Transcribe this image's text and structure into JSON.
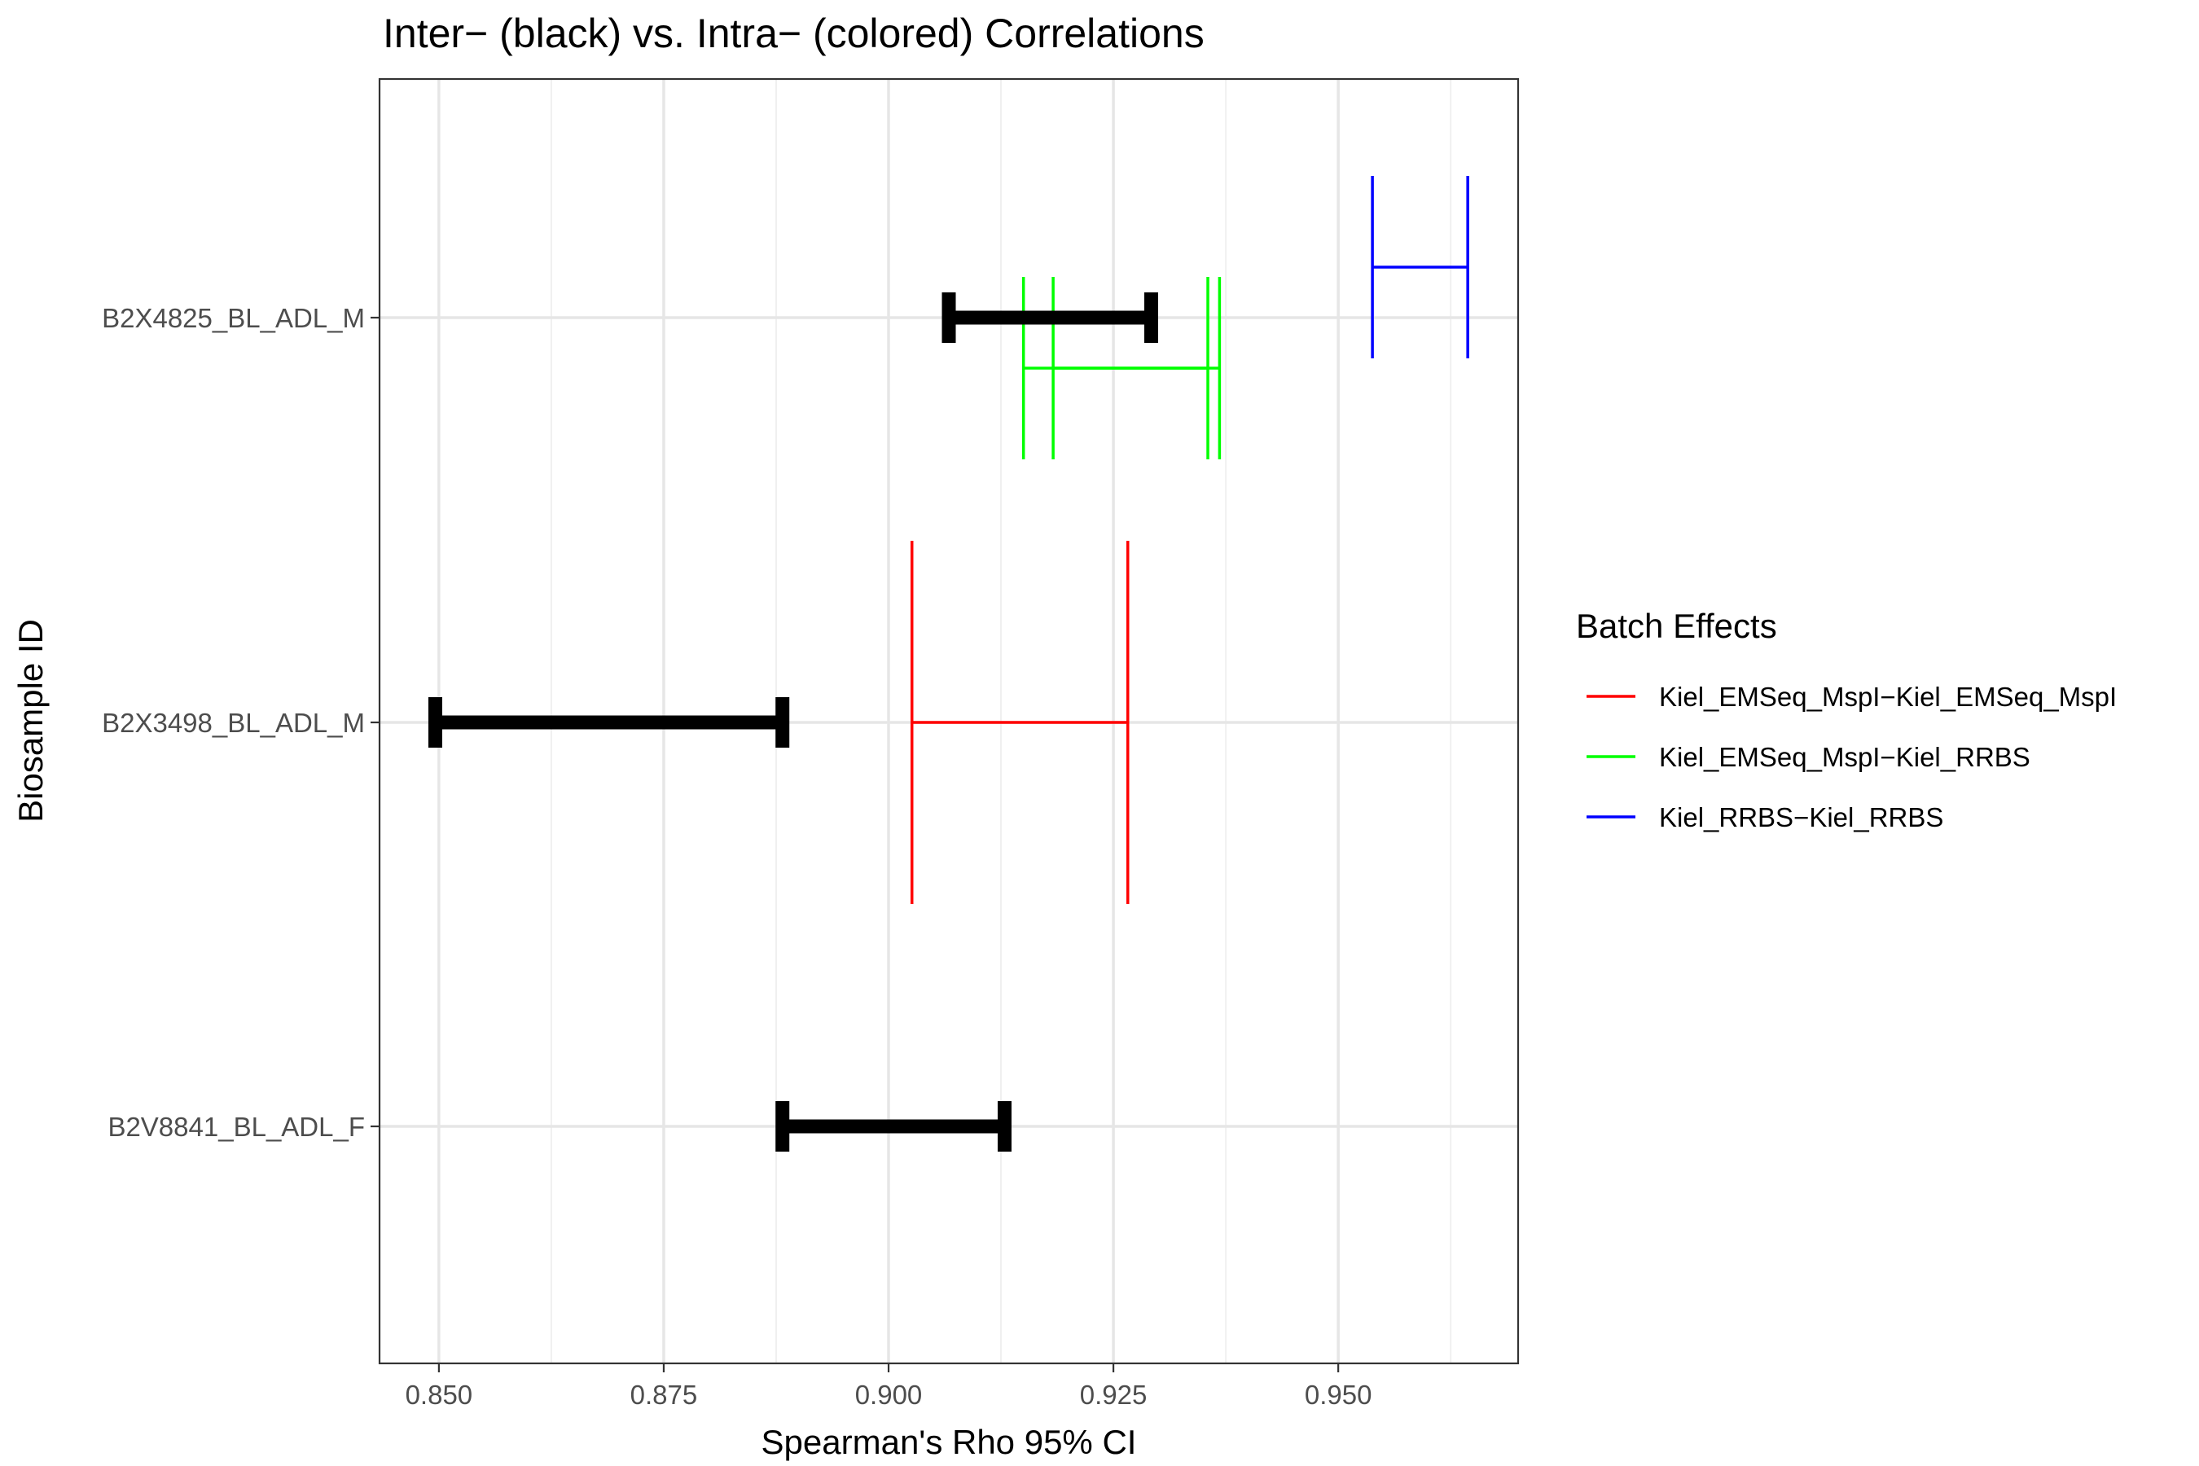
{
  "chart_data": {
    "type": "errorbar-interval",
    "title": "Inter− (black) vs. Intra− (colored) Correlations",
    "xlabel": "Spearman's Rho 95% CI",
    "ylabel": "Biosample ID",
    "xlim": [
      0.8434,
      0.97
    ],
    "x_ticks": [
      0.85,
      0.875,
      0.9,
      0.925,
      0.95
    ],
    "x_tick_labels": [
      "0.850",
      "0.875",
      "0.900",
      "0.925",
      "0.950"
    ],
    "categories": [
      "B2X4825_BL_ADL_M",
      "B2X3498_BL_ADL_M",
      "B2V8841_BL_ADL_F"
    ],
    "grid": true,
    "legend_position": "right",
    "legend_title": "Batch Effects",
    "legend": [
      {
        "name": "Kiel_EMSeq_MspI−Kiel_EMSeq_MspI",
        "color": "#ff0000"
      },
      {
        "name": "Kiel_EMSeq_MspI−Kiel_RRBS",
        "color": "#00ff00"
      },
      {
        "name": "Kiel_RRBS−Kiel_RRBS",
        "color": "#0000ff"
      }
    ],
    "inter_color": "#000000",
    "inter": [
      {
        "category": "B2X4825_BL_ADL_M",
        "low": 0.9067,
        "high": 0.9292
      },
      {
        "category": "B2X3498_BL_ADL_M",
        "low": 0.8496,
        "high": 0.8882
      },
      {
        "category": "B2V8841_BL_ADL_F",
        "low": 0.8882,
        "high": 0.9129
      }
    ],
    "intra": [
      {
        "category": "B2X4825_BL_ADL_M",
        "batch": "Kiel_RRBS−Kiel_RRBS",
        "color": "#0000ff",
        "low": 0.9538,
        "high": 0.9644
      },
      {
        "category": "B2X4825_BL_ADL_M",
        "batch": "Kiel_EMSeq_MspI−Kiel_RRBS",
        "color": "#00ff00",
        "low": 0.915,
        "high": 0.9368
      },
      {
        "category": "B2X4825_BL_ADL_M",
        "batch": "Kiel_EMSeq_MspI−Kiel_RRBS",
        "color": "#00ff00",
        "low": 0.9183,
        "high": 0.9355
      },
      {
        "category": "B2X3498_BL_ADL_M",
        "batch": "Kiel_EMSeq_MspI−Kiel_EMSeq_MspI",
        "color": "#ff0000",
        "low": 0.9026,
        "high": 0.9266
      }
    ]
  }
}
